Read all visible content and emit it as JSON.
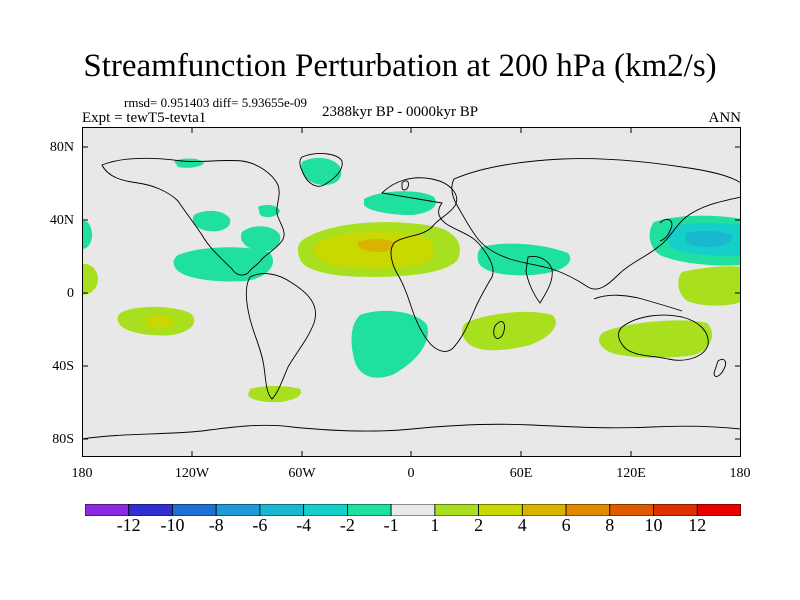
{
  "title": "Streamfunction Perturbation at 200 hPa (km2/s)",
  "stats": "rmsd= 0.951403 diff= 5.93655e-09",
  "expt": "Expt = tewT5-tevta1",
  "period": "2388kyr BP - 0000kyr BP",
  "season": "ANN",
  "lat_labels": [
    "80N",
    "40N",
    "0",
    "40S",
    "80S"
  ],
  "lon_labels": [
    "180",
    "120W",
    "60W",
    "0",
    "60E",
    "120E",
    "180"
  ],
  "colorbar": {
    "labels": [
      "-12",
      "-10",
      "-8",
      "-6",
      "-4",
      "-2",
      "-1",
      "1",
      "2",
      "4",
      "6",
      "8",
      "10",
      "12"
    ],
    "colors": [
      "#8a2be2",
      "#2f2fd2",
      "#1e6fd8",
      "#1e9ad8",
      "#1ab8d0",
      "#14d0c8",
      "#20e0a0",
      "#e8e8e8",
      "#a8e020",
      "#c8d800",
      "#d8b400",
      "#e08a00",
      "#e05a00",
      "#e03000",
      "#e80000"
    ]
  },
  "colors": {
    "ocean": "#e8e8e8",
    "coast": "#000000",
    "pos1": "#a8e020",
    "pos2": "#c8d800",
    "pos3": "#d8b400",
    "neg1": "#20e0a0",
    "neg2": "#14d0c8",
    "neg3": "#1ab8d0"
  }
}
